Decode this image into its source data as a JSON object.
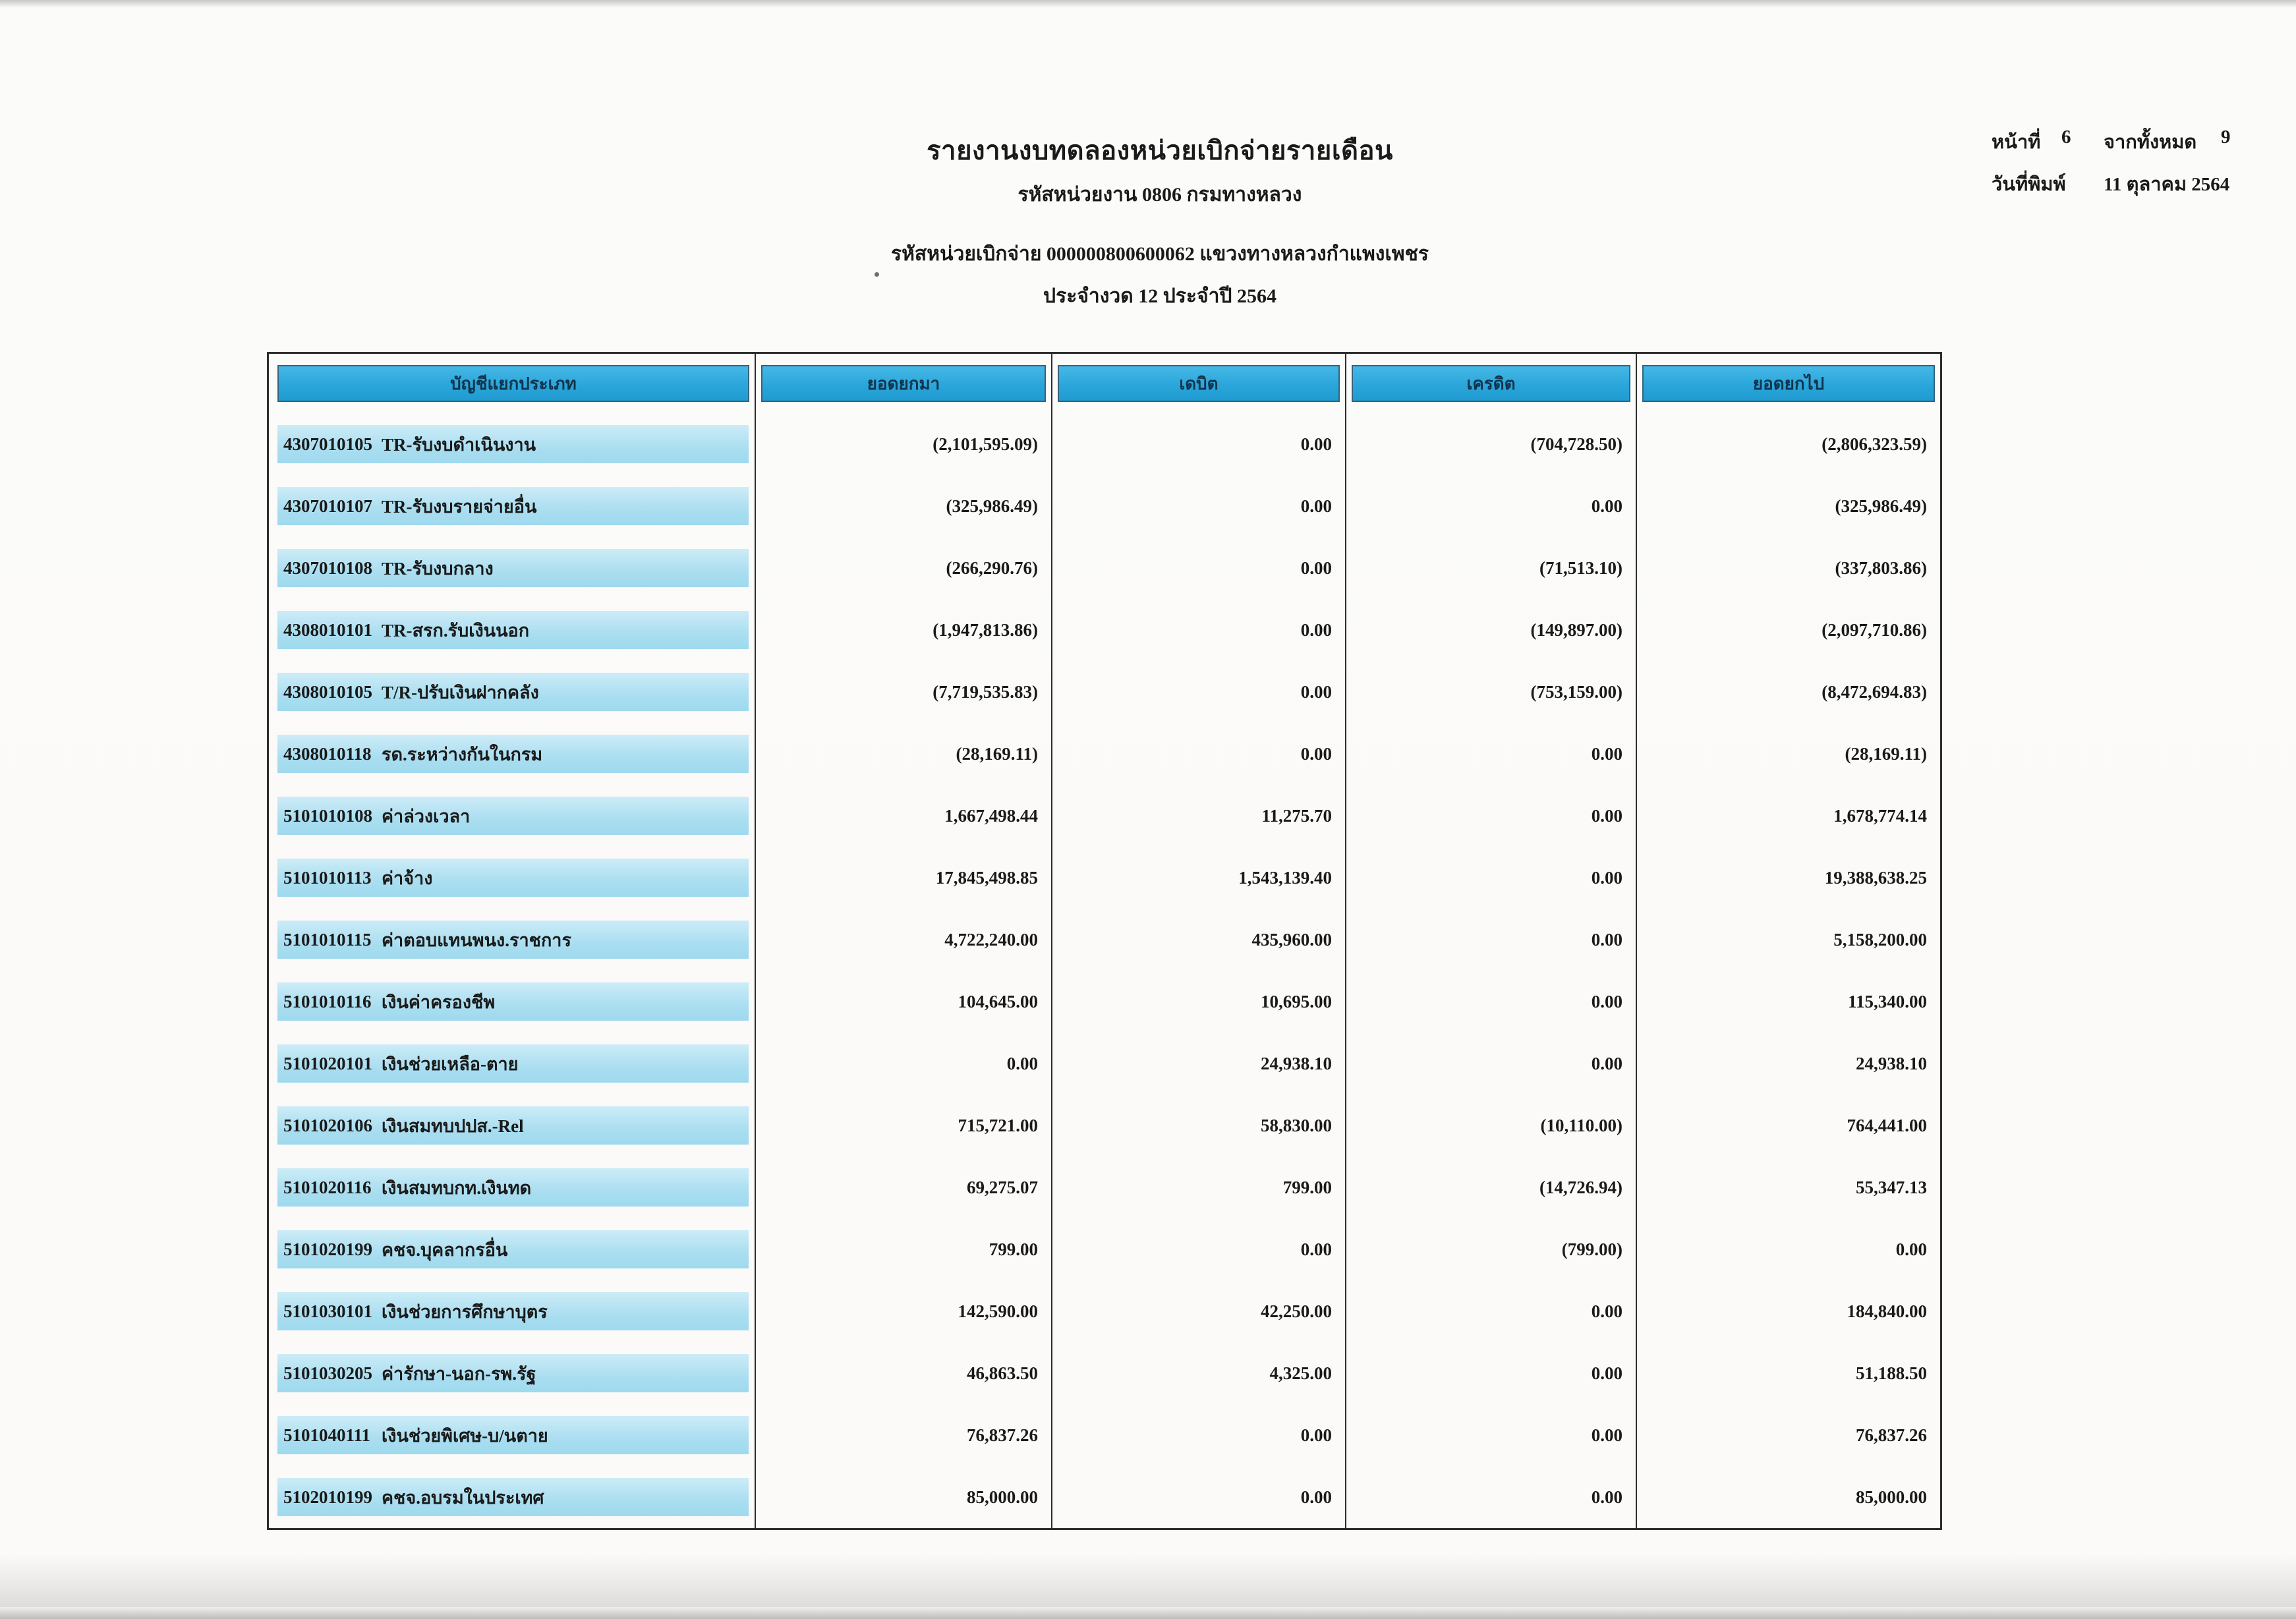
{
  "header": {
    "title": "รายงานงบทดลองหน่วยเบิกจ่ายรายเดือน",
    "agency_line": "รหัสหน่วยงาน 0806 กรมทางหลวง",
    "unit_line": "รหัสหน่วยเบิกจ่าย 000000800600062 แขวงทางหลวงกำแพงเพชร",
    "period_line": "ประจำงวด 12 ประจำปี 2564",
    "page_label": "หน้าที่",
    "page_number": "6",
    "total_label": "จากทั้งหมด",
    "total_pages": "9",
    "print_date_label": "วันที่พิมพ์",
    "print_date": "11 ตุลาคม 2564"
  },
  "colors": {
    "header_cell_fill": "#2aa6da",
    "account_band_fill": "#aadef0",
    "table_border": "#2d2d2d"
  },
  "table": {
    "columns": [
      "บัญชีแยกประเภท",
      "ยอดยกมา",
      "เดบิต",
      "เครดิต",
      "ยอดยกไป"
    ],
    "rows": [
      {
        "code": "4307010105",
        "name": "TR-รับงบดำเนินงาน",
        "brought": "(2,101,595.09)",
        "debit": "0.00",
        "credit": "(704,728.50)",
        "carried": "(2,806,323.59)"
      },
      {
        "code": "4307010107",
        "name": "TR-รับงบรายจ่ายอื่น",
        "brought": "(325,986.49)",
        "debit": "0.00",
        "credit": "0.00",
        "carried": "(325,986.49)"
      },
      {
        "code": "4307010108",
        "name": "TR-รับงบกลาง",
        "brought": "(266,290.76)",
        "debit": "0.00",
        "credit": "(71,513.10)",
        "carried": "(337,803.86)"
      },
      {
        "code": "4308010101",
        "name": "TR-สรก.รับเงินนอก",
        "brought": "(1,947,813.86)",
        "debit": "0.00",
        "credit": "(149,897.00)",
        "carried": "(2,097,710.86)"
      },
      {
        "code": "4308010105",
        "name": "T/R-ปรับเงินฝากคลัง",
        "brought": "(7,719,535.83)",
        "debit": "0.00",
        "credit": "(753,159.00)",
        "carried": "(8,472,694.83)"
      },
      {
        "code": "4308010118",
        "name": "รด.ระหว่างกันในกรม",
        "brought": "(28,169.11)",
        "debit": "0.00",
        "credit": "0.00",
        "carried": "(28,169.11)"
      },
      {
        "code": "5101010108",
        "name": "ค่าล่วงเวลา",
        "brought": "1,667,498.44",
        "debit": "11,275.70",
        "credit": "0.00",
        "carried": "1,678,774.14"
      },
      {
        "code": "5101010113",
        "name": "ค่าจ้าง",
        "brought": "17,845,498.85",
        "debit": "1,543,139.40",
        "credit": "0.00",
        "carried": "19,388,638.25"
      },
      {
        "code": "5101010115",
        "name": "ค่าตอบแทนพนง.ราชการ",
        "brought": "4,722,240.00",
        "debit": "435,960.00",
        "credit": "0.00",
        "carried": "5,158,200.00"
      },
      {
        "code": "5101010116",
        "name": "เงินค่าครองชีพ",
        "brought": "104,645.00",
        "debit": "10,695.00",
        "credit": "0.00",
        "carried": "115,340.00"
      },
      {
        "code": "5101020101",
        "name": "เงินช่วยเหลือ-ตาย",
        "brought": "0.00",
        "debit": "24,938.10",
        "credit": "0.00",
        "carried": "24,938.10"
      },
      {
        "code": "5101020106",
        "name": "เงินสมทบปปส.-Rel",
        "brought": "715,721.00",
        "debit": "58,830.00",
        "credit": "(10,110.00)",
        "carried": "764,441.00"
      },
      {
        "code": "5101020116",
        "name": "เงินสมทบกท.เงินทด",
        "brought": "69,275.07",
        "debit": "799.00",
        "credit": "(14,726.94)",
        "carried": "55,347.13"
      },
      {
        "code": "5101020199",
        "name": "คชจ.บุคลากรอื่น",
        "brought": "799.00",
        "debit": "0.00",
        "credit": "(799.00)",
        "carried": "0.00"
      },
      {
        "code": "5101030101",
        "name": "เงินช่วยการศึกษาบุตร",
        "brought": "142,590.00",
        "debit": "42,250.00",
        "credit": "0.00",
        "carried": "184,840.00"
      },
      {
        "code": "5101030205",
        "name": "ค่ารักษา-นอก-รพ.รัฐ",
        "brought": "46,863.50",
        "debit": "4,325.00",
        "credit": "0.00",
        "carried": "51,188.50"
      },
      {
        "code": "5101040111",
        "name": "เงินช่วยพิเศษ-บ/นตาย",
        "brought": "76,837.26",
        "debit": "0.00",
        "credit": "0.00",
        "carried": "76,837.26"
      },
      {
        "code": "5102010199",
        "name": "คชจ.อบรมในประเทศ",
        "brought": "85,000.00",
        "debit": "0.00",
        "credit": "0.00",
        "carried": "85,000.00"
      }
    ]
  }
}
